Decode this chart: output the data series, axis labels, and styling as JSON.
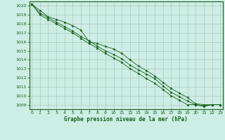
{
  "xlabel": "Graphe pression niveau de la mer (hPa)",
  "x": [
    0,
    1,
    2,
    3,
    4,
    5,
    6,
    7,
    8,
    9,
    10,
    11,
    12,
    13,
    14,
    15,
    16,
    17,
    18,
    19,
    20,
    21,
    22,
    23
  ],
  "line1": [
    1020.2,
    1019.5,
    1018.8,
    1018.5,
    1018.2,
    1017.8,
    1017.3,
    1016.0,
    1015.8,
    1015.5,
    1015.2,
    1014.7,
    1014.0,
    1013.3,
    1012.8,
    1012.2,
    1011.5,
    1010.8,
    1010.3,
    1009.8,
    1009.1,
    1009.0,
    1009.0,
    1009.0
  ],
  "line2": [
    1020.2,
    1019.2,
    1018.7,
    1018.2,
    1017.7,
    1017.2,
    1016.6,
    1016.1,
    1015.5,
    1015.0,
    1014.6,
    1014.1,
    1013.4,
    1012.9,
    1012.4,
    1011.9,
    1011.1,
    1010.4,
    1009.9,
    1009.4,
    1009.0,
    1008.9,
    1009.0,
    1009.0
  ],
  "line3": [
    1020.2,
    1019.0,
    1018.5,
    1018.0,
    1017.5,
    1017.0,
    1016.4,
    1015.8,
    1015.3,
    1014.7,
    1014.2,
    1013.7,
    1013.0,
    1012.5,
    1011.9,
    1011.4,
    1010.7,
    1010.0,
    1009.5,
    1009.0,
    1009.0,
    1008.8,
    1009.0,
    1009.0
  ],
  "ylim": [
    1009,
    1020
  ],
  "yticks": [
    1009,
    1010,
    1011,
    1012,
    1013,
    1014,
    1015,
    1016,
    1017,
    1018,
    1019,
    1020
  ],
  "xticks": [
    0,
    1,
    2,
    3,
    4,
    5,
    6,
    7,
    8,
    9,
    10,
    11,
    12,
    13,
    14,
    15,
    16,
    17,
    18,
    19,
    20,
    21,
    22,
    23
  ],
  "line_color": "#1a5c1a",
  "bg_color": "#cceee4",
  "grid_color": "#b0c8bc",
  "text_color": "#1a5c1a",
  "marker": "*",
  "marker_size": 2.5,
  "linewidth": 0.6
}
